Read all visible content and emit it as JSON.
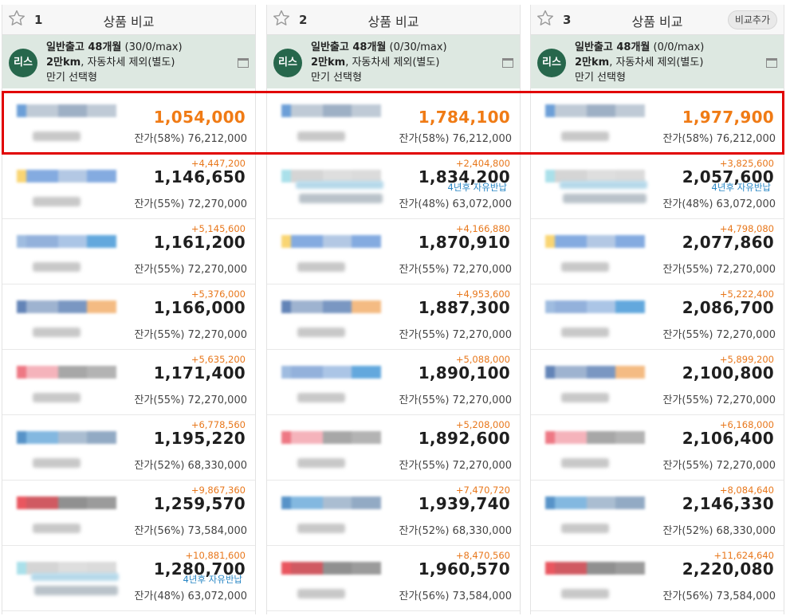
{
  "columns": [
    {
      "number": "1",
      "title": "상품 비교",
      "show_add": false,
      "badge": "리스",
      "product_line1_bold": "일반출고 48개월",
      "product_line1_rest": " (30/0/max)",
      "product_line2_bold": "2만km",
      "product_line2_rest": ", 자동차세 제외(별도)",
      "product_line3": "만기 선택형",
      "rows": [
        {
          "diff": "",
          "price": "1,054,000",
          "residual": "잔가(58%) 76,212,000",
          "best": true,
          "logo_colors": [
            "#3b7fc9",
            "#a9b8c8",
            "#7e95b2",
            "#a9b8c8"
          ]
        },
        {
          "diff": "+4,447,200",
          "price": "1,146,650",
          "residual": "잔가(55%) 72,270,000",
          "best": false,
          "logo_colors": [
            "#f7c744",
            "#5b8fd6",
            "#9ab6db",
            "#5b8fd6"
          ]
        },
        {
          "diff": "+5,145,600",
          "price": "1,161,200",
          "residual": "잔가(55%) 72,270,000",
          "best": false,
          "logo_colors": [
            "#7fa6d6",
            "#6f97cf",
            "#8fb2de",
            "#2f8bd2"
          ]
        },
        {
          "diff": "+5,376,000",
          "price": "1,166,000",
          "residual": "잔가(55%) 72,270,000",
          "best": false,
          "logo_colors": [
            "#2f5b9f",
            "#7e9ac0",
            "#4d74ad",
            "#f0a45a"
          ]
        },
        {
          "diff": "+5,635,200",
          "price": "1,171,400",
          "residual": "잔가(55%) 72,270,000",
          "best": false,
          "logo_colors": [
            "#e84b5b",
            "#f29aa4",
            "#8a8a8a",
            "#9a9a9a"
          ]
        },
        {
          "diff": "+6,778,560",
          "price": "1,195,220",
          "residual": "잔가(52%) 68,330,000",
          "best": false,
          "logo_colors": [
            "#1f6fb5",
            "#5aa0d6",
            "#8ea7c2",
            "#6d8db0"
          ]
        },
        {
          "diff": "+9,867,360",
          "price": "1,259,570",
          "residual": "잔가(56%) 73,584,000",
          "best": false,
          "logo_colors": [
            "#e11e2a",
            "#c0232e",
            "#6b6b6b",
            "#7a7a7a"
          ]
        },
        {
          "diff": "+10,881,600",
          "price": "1,280,700",
          "residual": "잔가(48%) 63,072,000",
          "best": false,
          "note": "4년후 자유반납",
          "logo_colors": [
            "#8dd6e3",
            "#c7c7c7",
            "#d3d3d3",
            "#cfcfcf"
          ]
        }
      ]
    },
    {
      "number": "2",
      "title": "상품 비교",
      "show_add": false,
      "badge": "리스",
      "product_line1_bold": "일반출고 48개월",
      "product_line1_rest": " (0/30/max)",
      "product_line2_bold": "2만km",
      "product_line2_rest": ", 자동차세 제외(별도)",
      "product_line3": "만기 선택형",
      "rows": [
        {
          "diff": "",
          "price": "1,784,100",
          "residual": "잔가(58%) 76,212,000",
          "best": true,
          "logo_colors": [
            "#3b7fc9",
            "#a9b8c8",
            "#7e95b2",
            "#a9b8c8"
          ]
        },
        {
          "diff": "+2,404,800",
          "price": "1,834,200",
          "residual": "잔가(48%) 63,072,000",
          "best": false,
          "note": "4년후 자유반납",
          "logo_colors": [
            "#8dd6e3",
            "#c7c7c7",
            "#d3d3d3",
            "#cfcfcf"
          ]
        },
        {
          "diff": "+4,166,880",
          "price": "1,870,910",
          "residual": "잔가(55%) 72,270,000",
          "best": false,
          "logo_colors": [
            "#f7c744",
            "#5b8fd6",
            "#9ab6db",
            "#5b8fd6"
          ]
        },
        {
          "diff": "+4,953,600",
          "price": "1,887,300",
          "residual": "잔가(55%) 72,270,000",
          "best": false,
          "logo_colors": [
            "#2f5b9f",
            "#7e9ac0",
            "#4d74ad",
            "#f0a45a"
          ]
        },
        {
          "diff": "+5,088,000",
          "price": "1,890,100",
          "residual": "잔가(55%) 72,270,000",
          "best": false,
          "logo_colors": [
            "#7fa6d6",
            "#6f97cf",
            "#8fb2de",
            "#2f8bd2"
          ]
        },
        {
          "diff": "+5,208,000",
          "price": "1,892,600",
          "residual": "잔가(55%) 72,270,000",
          "best": false,
          "logo_colors": [
            "#e84b5b",
            "#f29aa4",
            "#8a8a8a",
            "#9a9a9a"
          ]
        },
        {
          "diff": "+7,470,720",
          "price": "1,939,740",
          "residual": "잔가(52%) 68,330,000",
          "best": false,
          "logo_colors": [
            "#1f6fb5",
            "#5aa0d6",
            "#8ea7c2",
            "#6d8db0"
          ]
        },
        {
          "diff": "+8,470,560",
          "price": "1,960,570",
          "residual": "잔가(56%) 73,584,000",
          "best": false,
          "logo_colors": [
            "#e11e2a",
            "#c0232e",
            "#6b6b6b",
            "#7a7a7a"
          ]
        }
      ]
    },
    {
      "number": "3",
      "title": "상품 비교",
      "show_add": true,
      "add_label": "비교추가",
      "badge": "리스",
      "product_line1_bold": "일반출고 48개월",
      "product_line1_rest": " (0/0/max)",
      "product_line2_bold": "2만km",
      "product_line2_rest": ", 자동차세 제외(별도)",
      "product_line3": "만기 선택형",
      "rows": [
        {
          "diff": "",
          "price": "1,977,900",
          "residual": "잔가(58%) 76,212,000",
          "best": true,
          "logo_colors": [
            "#3b7fc9",
            "#a9b8c8",
            "#7e95b2",
            "#a9b8c8"
          ]
        },
        {
          "diff": "+3,825,600",
          "price": "2,057,600",
          "residual": "잔가(48%) 63,072,000",
          "best": false,
          "note": "4년후 자유반납",
          "logo_colors": [
            "#8dd6e3",
            "#c7c7c7",
            "#d3d3d3",
            "#cfcfcf"
          ]
        },
        {
          "diff": "+4,798,080",
          "price": "2,077,860",
          "residual": "잔가(55%) 72,270,000",
          "best": false,
          "logo_colors": [
            "#f7c744",
            "#5b8fd6",
            "#9ab6db",
            "#5b8fd6"
          ]
        },
        {
          "diff": "+5,222,400",
          "price": "2,086,700",
          "residual": "잔가(55%) 72,270,000",
          "best": false,
          "logo_colors": [
            "#7fa6d6",
            "#6f97cf",
            "#8fb2de",
            "#2f8bd2"
          ]
        },
        {
          "diff": "+5,899,200",
          "price": "2,100,800",
          "residual": "잔가(55%) 72,270,000",
          "best": false,
          "logo_colors": [
            "#2f5b9f",
            "#7e9ac0",
            "#4d74ad",
            "#f0a45a"
          ]
        },
        {
          "diff": "+6,168,000",
          "price": "2,106,400",
          "residual": "잔가(55%) 72,270,000",
          "best": false,
          "logo_colors": [
            "#e84b5b",
            "#f29aa4",
            "#8a8a8a",
            "#9a9a9a"
          ]
        },
        {
          "diff": "+8,084,640",
          "price": "2,146,330",
          "residual": "잔가(52%) 68,330,000",
          "best": false,
          "logo_colors": [
            "#1f6fb5",
            "#5aa0d6",
            "#8ea7c2",
            "#6d8db0"
          ]
        },
        {
          "diff": "+11,624,640",
          "price": "2,220,080",
          "residual": "잔가(56%) 73,584,000",
          "best": false,
          "logo_colors": [
            "#e11e2a",
            "#c0232e",
            "#6b6b6b",
            "#7a7a7a"
          ]
        }
      ]
    }
  ],
  "colors": {
    "accent_price": "#f07b15",
    "diff": "#e8771b",
    "lease_badge": "#27674c",
    "product_bg": "#dde8e1",
    "highlight": "#e10000",
    "note": "#2a87c5"
  }
}
